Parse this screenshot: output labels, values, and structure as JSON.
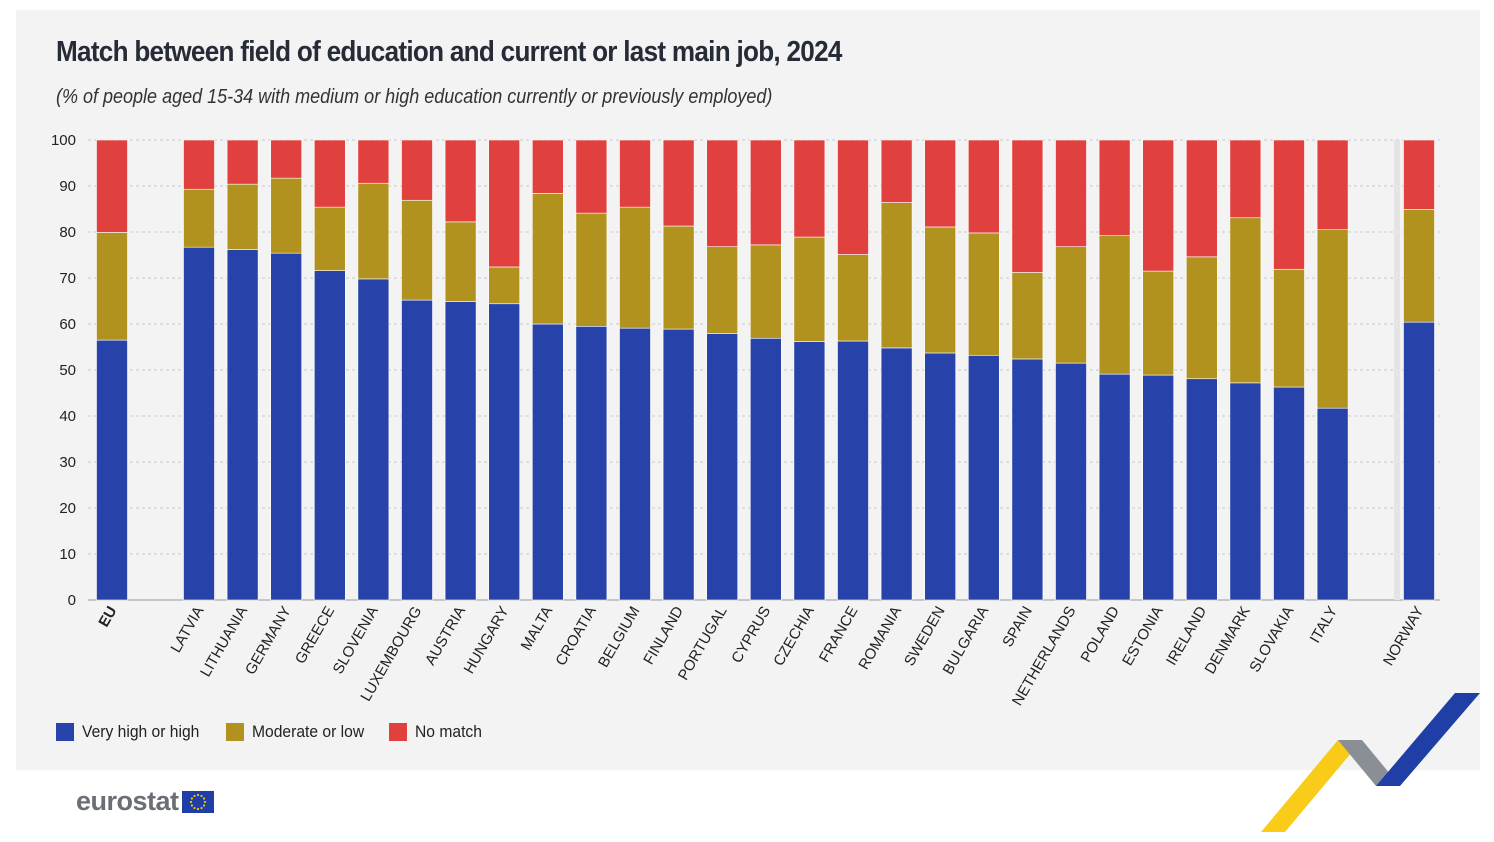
{
  "title": "Match between field of education and current or last main job, 2024",
  "subtitle": "(% of people aged 15-34 with medium or high education currently or previously employed)",
  "brand": "eurostat",
  "colors": {
    "very_high": "#2742a8",
    "moderate": "#b1921f",
    "no_match": "#e0413f"
  },
  "chart_data": {
    "type": "bar",
    "stacked": true,
    "ylim": [
      0,
      100
    ],
    "yticks": [
      0,
      10,
      20,
      30,
      40,
      50,
      60,
      70,
      80,
      90,
      100
    ],
    "grid": true,
    "legend_position": "bottom-left",
    "categories": [
      "EU",
      "LATVIA",
      "LITHUANIA",
      "GERMANY",
      "GREECE",
      "SLOVENIA",
      "LUXEMBOURG",
      "AUSTRIA",
      "HUNGARY",
      "MALTA",
      "CROATIA",
      "BELGIUM",
      "FINLAND",
      "PORTUGAL",
      "CYPRUS",
      "CZECHIA",
      "FRANCE",
      "ROMANIA",
      "SWEDEN",
      "BULGARIA",
      "SPAIN",
      "NETHERLANDS",
      "POLAND",
      "ESTONIA",
      "IRELAND",
      "DENMARK",
      "SLOVAKIA",
      "ITALY",
      "NORWAY"
    ],
    "series": [
      {
        "name": "Very high or high",
        "values": [
          56.5,
          76.7,
          76.2,
          75.4,
          71.6,
          69.8,
          65.2,
          64.9,
          64.4,
          60.0,
          59.5,
          59.1,
          58.9,
          57.9,
          56.9,
          56.2,
          56.3,
          54.8,
          53.7,
          53.2,
          52.4,
          51.5,
          49.1,
          48.9,
          48.1,
          47.2,
          46.3,
          41.7,
          60.4
        ]
      },
      {
        "name": "Moderate or low",
        "values": [
          23.4,
          12.6,
          14.2,
          16.3,
          13.8,
          20.8,
          21.7,
          17.3,
          8.0,
          28.4,
          24.6,
          26.3,
          22.4,
          18.9,
          20.3,
          22.7,
          18.8,
          31.6,
          27.4,
          26.6,
          18.8,
          25.3,
          30.1,
          22.6,
          26.5,
          35.9,
          25.6,
          38.8,
          24.5
        ]
      },
      {
        "name": "No match",
        "values": [
          20.1,
          10.7,
          9.6,
          8.3,
          14.6,
          9.4,
          13.1,
          17.8,
          27.6,
          11.6,
          15.9,
          14.6,
          18.7,
          23.2,
          22.8,
          21.1,
          24.9,
          13.6,
          18.9,
          20.2,
          28.8,
          23.2,
          20.8,
          28.5,
          25.4,
          16.9,
          28.1,
          19.5,
          15.1
        ]
      }
    ]
  }
}
